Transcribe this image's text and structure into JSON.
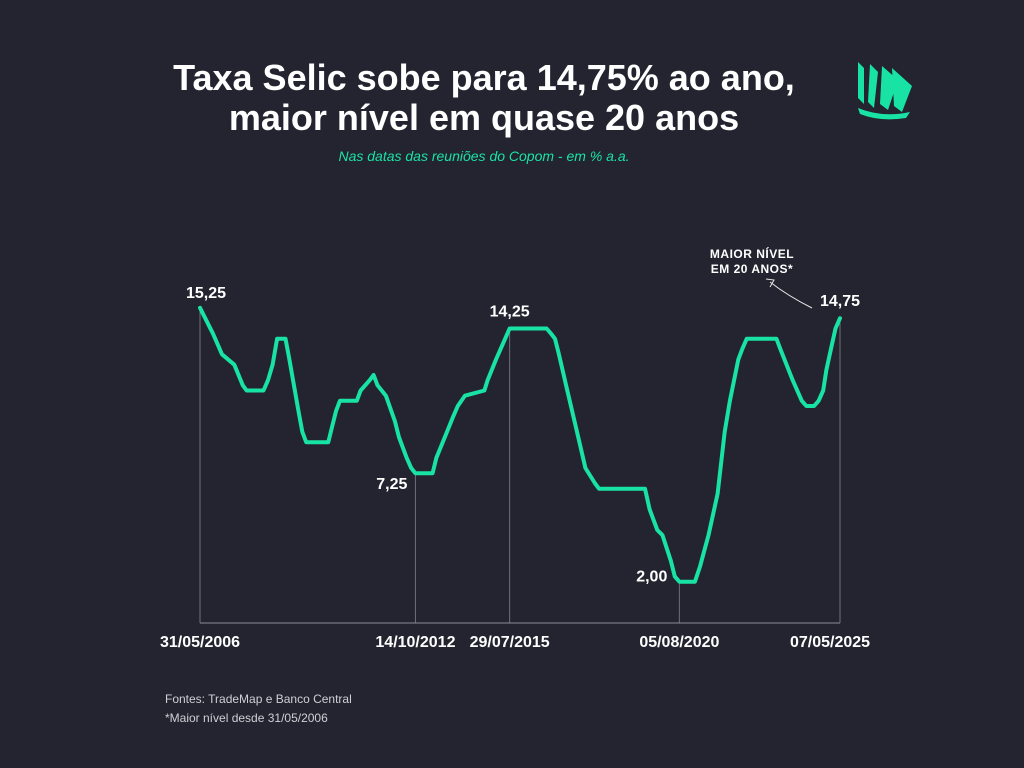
{
  "title_line1": "Taxa Selic sobe para 14,75% ao ano,",
  "title_line2": "maior nível em quase 20 anos",
  "subtitle": "Nas datas das reuniões do Copom - em % a.a.",
  "annotation": {
    "line1": "MAIOR NÍVEL",
    "line2": "EM 20 ANOS*"
  },
  "footer": {
    "sources": "Fontes: TradeMap e Banco Central",
    "note": "*Maior nível desde 31/05/2006"
  },
  "colors": {
    "background": "#23242f",
    "line": "#19e3a4",
    "text": "#ffffff",
    "axis": "#8a8b94"
  },
  "logo_icon": "sails-logo-icon",
  "chart_data": {
    "type": "line",
    "title": "Taxa Selic sobe para 14,75% ao ano, maior nível em quase 20 anos",
    "subtitle": "Nas datas das reuniões do Copom - em % a.a.",
    "xlabel": "",
    "ylabel": "",
    "ylim": [
      0,
      16.5
    ],
    "grid": false,
    "x_ticks": [
      {
        "date": "2006-05-31",
        "label": "31/05/2006"
      },
      {
        "date": "2012-10-14",
        "label": "14/10/2012"
      },
      {
        "date": "2015-07-29",
        "label": "29/07/2015"
      },
      {
        "date": "2020-08-05",
        "label": "05/08/2020"
      },
      {
        "date": "2025-05-07",
        "label": "07/05/2025"
      }
    ],
    "data_labels": [
      {
        "date": "2006-05-31",
        "value": 15.25,
        "label": "15,25"
      },
      {
        "date": "2012-10-14",
        "value": 7.25,
        "label": "7,25"
      },
      {
        "date": "2015-07-29",
        "value": 14.25,
        "label": "14,25"
      },
      {
        "date": "2020-08-05",
        "value": 2.0,
        "label": "2,00"
      },
      {
        "date": "2025-05-07",
        "value": 14.75,
        "label": "14,75"
      }
    ],
    "series": [
      {
        "points": [
          [
            "2006-05-31",
            15.25
          ],
          [
            "2006-10-18",
            14.0
          ],
          [
            "2007-01-24",
            13.0
          ],
          [
            "2007-06-06",
            12.5
          ],
          [
            "2007-09-05",
            11.5
          ],
          [
            "2007-10-17",
            11.25
          ],
          [
            "2008-04-16",
            11.25
          ],
          [
            "2008-06-04",
            11.75
          ],
          [
            "2008-07-23",
            12.5
          ],
          [
            "2008-09-10",
            13.75
          ],
          [
            "2008-12-10",
            13.75
          ],
          [
            "2009-01-21",
            12.75
          ],
          [
            "2009-04-29",
            10.25
          ],
          [
            "2009-06-10",
            9.25
          ],
          [
            "2009-07-22",
            8.75
          ],
          [
            "2010-03-17",
            8.75
          ],
          [
            "2010-04-28",
            9.5
          ],
          [
            "2010-06-09",
            10.25
          ],
          [
            "2010-07-21",
            10.75
          ],
          [
            "2011-01-19",
            10.75
          ],
          [
            "2011-03-02",
            11.25
          ],
          [
            "2011-06-08",
            11.75
          ],
          [
            "2011-07-20",
            12.0
          ],
          [
            "2011-08-31",
            11.5
          ],
          [
            "2011-11-30",
            11.0
          ],
          [
            "2012-03-07",
            9.75
          ],
          [
            "2012-04-18",
            9.0
          ],
          [
            "2012-07-11",
            8.0
          ],
          [
            "2012-08-29",
            7.5
          ],
          [
            "2012-10-14",
            7.25
          ],
          [
            "2013-04-17",
            7.25
          ],
          [
            "2013-05-29",
            8.0
          ],
          [
            "2013-08-28",
            9.0
          ],
          [
            "2013-11-27",
            10.0
          ],
          [
            "2014-01-15",
            10.5
          ],
          [
            "2014-04-02",
            11.0
          ],
          [
            "2014-10-29",
            11.25
          ],
          [
            "2014-12-03",
            11.75
          ],
          [
            "2015-03-04",
            12.75
          ],
          [
            "2015-07-29",
            14.25
          ],
          [
            "2016-08-31",
            14.25
          ],
          [
            "2016-10-19",
            14.0
          ],
          [
            "2016-11-30",
            13.75
          ],
          [
            "2017-01-11",
            13.0
          ],
          [
            "2017-04-12",
            11.25
          ],
          [
            "2017-07-26",
            9.25
          ],
          [
            "2017-10-25",
            7.5
          ],
          [
            "2018-02-07",
            6.75
          ],
          [
            "2018-03-21",
            6.5
          ],
          [
            "2019-07-31",
            6.5
          ],
          [
            "2019-09-18",
            5.5
          ],
          [
            "2019-12-11",
            4.5
          ],
          [
            "2020-02-05",
            4.25
          ],
          [
            "2020-05-06",
            3.0
          ],
          [
            "2020-06-17",
            2.25
          ],
          [
            "2020-08-05",
            2.0
          ],
          [
            "2021-01-20",
            2.0
          ],
          [
            "2021-03-17",
            2.75
          ],
          [
            "2021-06-16",
            4.25
          ],
          [
            "2021-09-22",
            6.25
          ],
          [
            "2021-12-08",
            9.25
          ],
          [
            "2022-02-02",
            10.75
          ],
          [
            "2022-05-04",
            12.75
          ],
          [
            "2022-06-15",
            13.25
          ],
          [
            "2022-08-03",
            13.75
          ],
          [
            "2023-06-21",
            13.75
          ],
          [
            "2023-08-02",
            13.25
          ],
          [
            "2023-12-13",
            11.75
          ],
          [
            "2024-03-20",
            10.75
          ],
          [
            "2024-05-08",
            10.5
          ],
          [
            "2024-07-31",
            10.5
          ],
          [
            "2024-09-18",
            10.75
          ],
          [
            "2024-11-06",
            11.25
          ],
          [
            "2024-12-11",
            12.25
          ],
          [
            "2025-01-29",
            13.25
          ],
          [
            "2025-03-19",
            14.25
          ],
          [
            "2025-05-07",
            14.75
          ]
        ]
      }
    ]
  }
}
